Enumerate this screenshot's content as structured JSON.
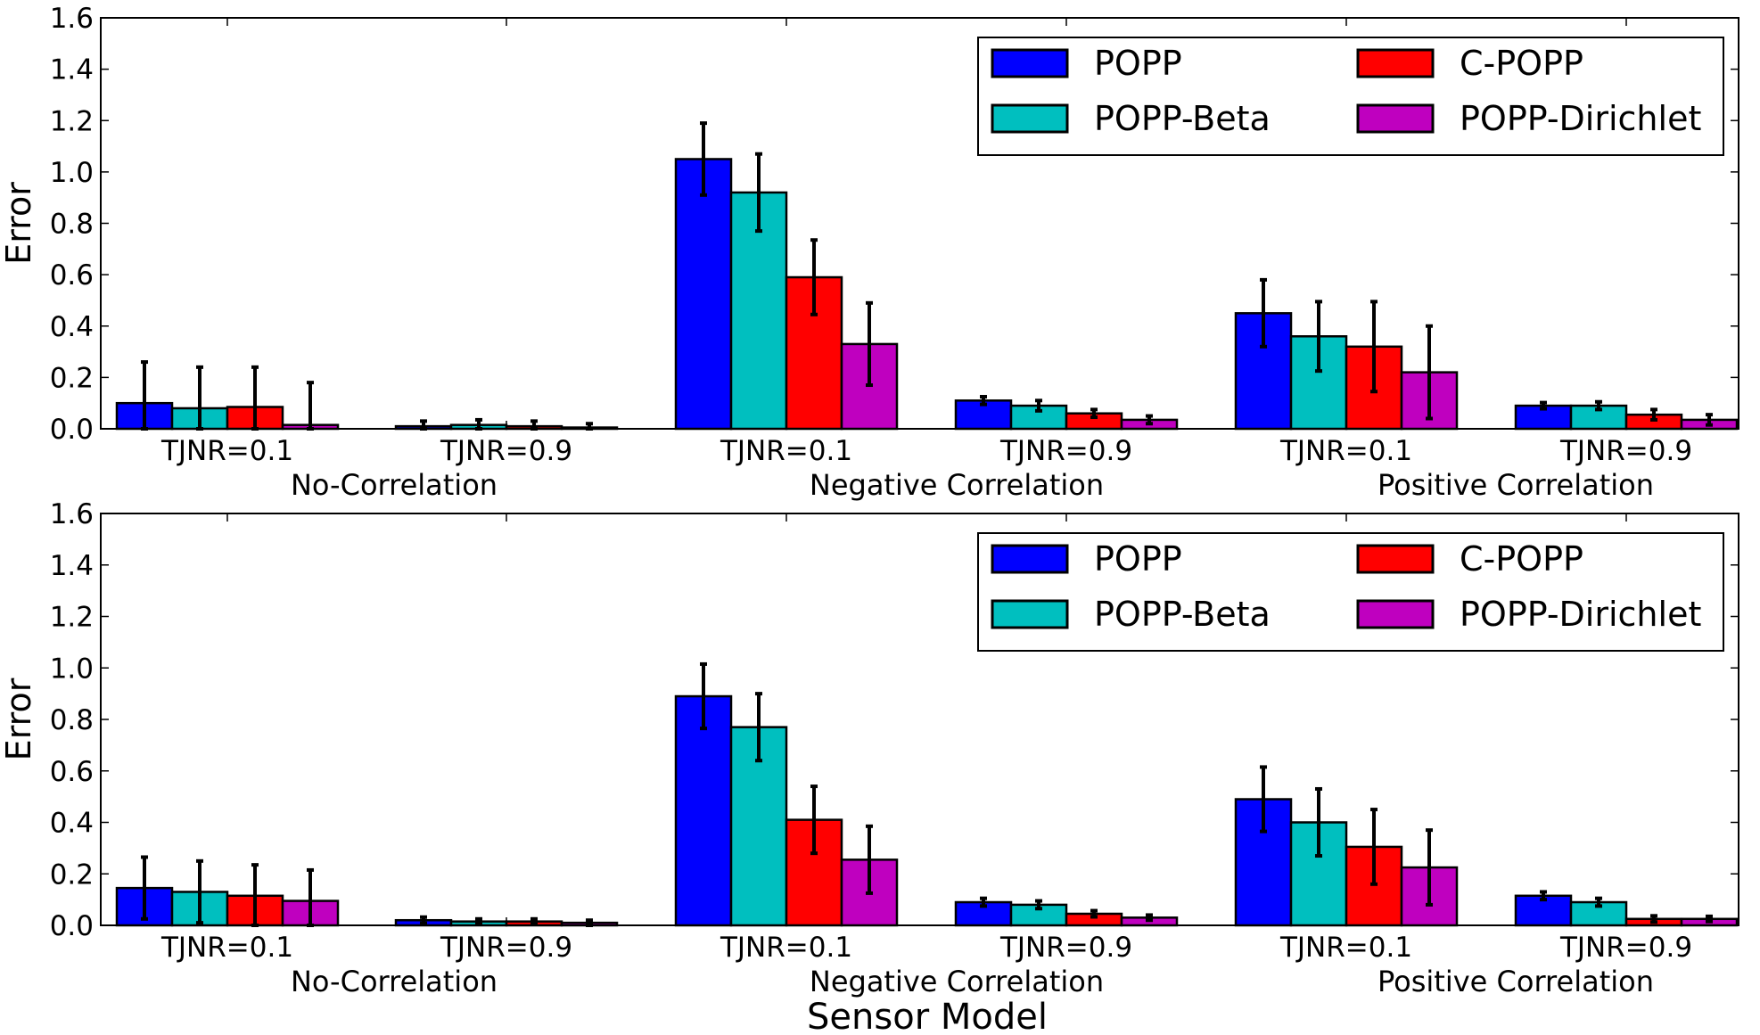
{
  "chart_data": [
    {
      "type": "bar",
      "title": "",
      "xlabel": "",
      "ylabel": "Error",
      "ylim": [
        0,
        1.6
      ],
      "yticks": [
        0.0,
        0.2,
        0.4,
        0.6,
        0.8,
        1.0,
        1.2,
        1.4,
        1.6
      ],
      "ytick_labels": [
        "0.0",
        "0.2",
        "0.4",
        "0.6",
        "0.8",
        "1.0",
        "1.2",
        "1.4",
        "1.6"
      ],
      "grid": false,
      "legend_placement": "top-right",
      "categories": [
        "TJNR=0.1",
        "TJNR=0.9",
        "TJNR=0.1",
        "TJNR=0.9",
        "TJNR=0.1",
        "TJNR=0.9"
      ],
      "groups": [
        "No-Correlation",
        "Negative Correlation",
        "Positive Correlation"
      ],
      "series": [
        {
          "name": "POPP",
          "color": "#0000ff",
          "values": [
            0.1,
            0.01,
            1.05,
            0.11,
            0.45,
            0.09
          ],
          "errors": [
            0.16,
            0.02,
            0.14,
            0.015,
            0.13,
            0.012
          ]
        },
        {
          "name": "POPP-Beta",
          "color": "#00bfbf",
          "values": [
            0.08,
            0.015,
            0.92,
            0.09,
            0.36,
            0.09
          ],
          "errors": [
            0.16,
            0.02,
            0.15,
            0.02,
            0.135,
            0.015
          ]
        },
        {
          "name": "C-POPP",
          "color": "#ff0000",
          "values": [
            0.085,
            0.01,
            0.59,
            0.06,
            0.32,
            0.055
          ],
          "errors": [
            0.155,
            0.02,
            0.145,
            0.015,
            0.175,
            0.02
          ]
        },
        {
          "name": "POPP-Dirichlet",
          "color": "#bf00bf",
          "values": [
            0.015,
            0.005,
            0.33,
            0.035,
            0.22,
            0.035
          ],
          "errors": [
            0.165,
            0.015,
            0.16,
            0.015,
            0.18,
            0.02
          ]
        }
      ]
    },
    {
      "type": "bar",
      "title": "",
      "xlabel": "Sensor Model",
      "ylabel": "Error",
      "ylim": [
        0,
        1.6
      ],
      "yticks": [
        0.0,
        0.2,
        0.4,
        0.6,
        0.8,
        1.0,
        1.2,
        1.4,
        1.6
      ],
      "ytick_labels": [
        "0.0",
        "0.2",
        "0.4",
        "0.6",
        "0.8",
        "1.0",
        "1.2",
        "1.4",
        "1.6"
      ],
      "grid": false,
      "legend_placement": "top-right",
      "categories": [
        "TJNR=0.1",
        "TJNR=0.9",
        "TJNR=0.1",
        "TJNR=0.9",
        "TJNR=0.1",
        "TJNR=0.9"
      ],
      "groups": [
        "No-Correlation",
        "Negative Correlation",
        "Positive Correlation"
      ],
      "series": [
        {
          "name": "POPP",
          "color": "#0000ff",
          "values": [
            0.145,
            0.02,
            0.89,
            0.09,
            0.49,
            0.115
          ],
          "errors": [
            0.12,
            0.012,
            0.125,
            0.015,
            0.125,
            0.015
          ]
        },
        {
          "name": "POPP-Beta",
          "color": "#00bfbf",
          "values": [
            0.13,
            0.015,
            0.77,
            0.08,
            0.4,
            0.09
          ],
          "errors": [
            0.12,
            0.01,
            0.13,
            0.015,
            0.13,
            0.015
          ]
        },
        {
          "name": "C-POPP",
          "color": "#ff0000",
          "values": [
            0.115,
            0.015,
            0.41,
            0.045,
            0.305,
            0.025
          ],
          "errors": [
            0.12,
            0.01,
            0.13,
            0.012,
            0.145,
            0.012
          ]
        },
        {
          "name": "POPP-Dirichlet",
          "color": "#bf00bf",
          "values": [
            0.095,
            0.01,
            0.255,
            0.03,
            0.225,
            0.025
          ],
          "errors": [
            0.12,
            0.01,
            0.13,
            0.01,
            0.145,
            0.01
          ]
        }
      ]
    }
  ]
}
